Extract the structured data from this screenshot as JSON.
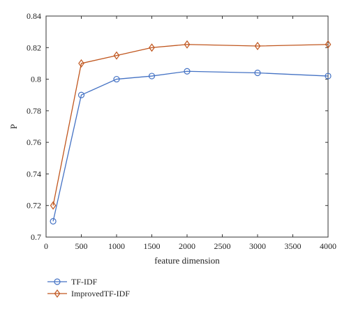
{
  "chart_data": {
    "type": "line",
    "xlabel": "feature dimension",
    "ylabel": "P",
    "xlim": [
      0,
      4000
    ],
    "ylim": [
      0.7,
      0.84
    ],
    "xticks": [
      "0",
      "500",
      "1000",
      "1500",
      "2000",
      "2500",
      "3000",
      "3500",
      "4000"
    ],
    "yticks": [
      "0.7",
      "0.72",
      "0.74",
      "0.76",
      "0.78",
      "0.8",
      "0.82",
      "0.84"
    ],
    "grid": false,
    "legend_position": "bottom-left",
    "x": [
      100,
      500,
      1000,
      1500,
      2000,
      3000,
      4000
    ],
    "series": [
      {
        "name": "TF-IDF",
        "marker": "circle",
        "color": "#4472C4",
        "values": [
          0.71,
          0.79,
          0.8,
          0.802,
          0.805,
          0.804,
          0.802
        ]
      },
      {
        "name": "ImprovedTF-IDF",
        "marker": "diamond",
        "color": "#C0561E",
        "values": [
          0.72,
          0.81,
          0.815,
          0.82,
          0.822,
          0.821,
          0.822
        ]
      }
    ]
  }
}
